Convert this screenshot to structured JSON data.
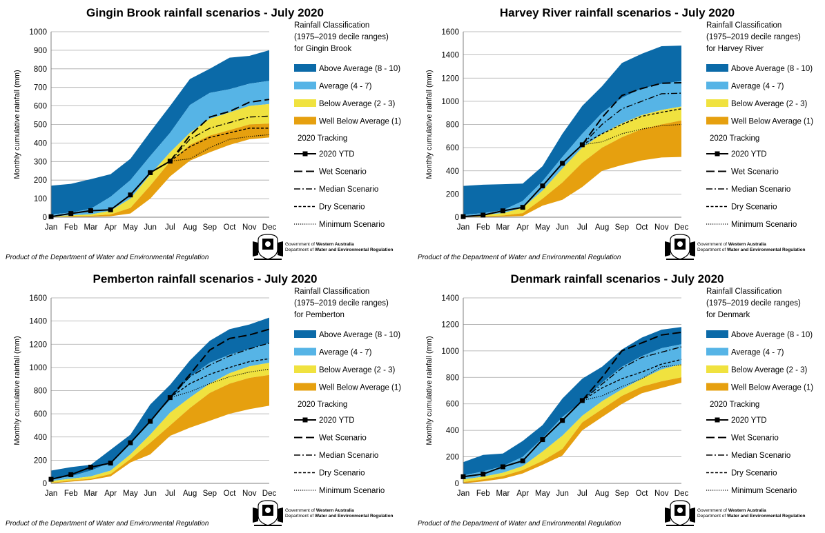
{
  "footer_text": "Product of the Department of Water and Environmental Regulation",
  "gov_line1_prefix": "Government of ",
  "gov_line1_bold": "Western Australia",
  "gov_line2_prefix": "Department of ",
  "gov_line2_bold": "Water and Environmental Regulation",
  "legend": {
    "heading_line1": "Rainfall Classification",
    "heading_line2": "(1975–2019 decile ranges)",
    "bands": [
      "Above Average (8 - 10)",
      "Average (4 - 7)",
      "Below Average (2 - 3)",
      "Well Below Average (1)"
    ],
    "tracking_heading": "2020 Tracking",
    "lines": [
      "2020 YTD",
      "Wet Scenario",
      "Median Scenario",
      "Dry Scenario",
      "Minimum Scenario"
    ]
  },
  "colors": {
    "above": "#0b6aa8",
    "average": "#56b4e6",
    "below": "#f0e23f",
    "well_below": "#e6a00f",
    "grid": "#a6a6a6"
  },
  "chart_data": [
    {
      "type": "area",
      "title": "Gingin Brook rainfall scenarios - July 2020",
      "ylabel": "Monthly cumulative rainfall (mm)",
      "legend_location": "for Gingin Brook",
      "categories": [
        "Jan",
        "Feb",
        "Mar",
        "Apr",
        "May",
        "Jun",
        "Jul",
        "Aug",
        "Sep",
        "Oct",
        "Nov",
        "Dec"
      ],
      "ylim": [
        0,
        1000
      ],
      "yticks": [
        0,
        100,
        200,
        300,
        400,
        500,
        600,
        700,
        800,
        900,
        1000
      ],
      "bands": {
        "max": [
          170,
          180,
          205,
          232,
          315,
          460,
          600,
          745,
          800,
          860,
          870,
          900
        ],
        "d7": [
          15,
          25,
          45,
          110,
          200,
          330,
          455,
          605,
          670,
          690,
          720,
          735
        ],
        "d3": [
          5,
          10,
          15,
          35,
          100,
          230,
          350,
          455,
          530,
          565,
          600,
          610
        ],
        "d1": [
          0,
          5,
          8,
          15,
          50,
          170,
          300,
          390,
          440,
          470,
          500,
          505
        ],
        "min": [
          0,
          2,
          3,
          5,
          20,
          100,
          220,
          305,
          350,
          390,
          420,
          430
        ]
      },
      "series": [
        {
          "name": "2020 YTD",
          "values": [
            3,
            20,
            35,
            40,
            120,
            240,
            302,
            null,
            null,
            null,
            null,
            null
          ]
        },
        {
          "name": "Wet Scenario",
          "values": [
            null,
            null,
            null,
            null,
            null,
            null,
            302,
            440,
            540,
            570,
            620,
            635
          ]
        },
        {
          "name": "Median Scenario",
          "values": [
            null,
            null,
            null,
            null,
            null,
            null,
            302,
            420,
            480,
            510,
            540,
            545
          ]
        },
        {
          "name": "Dry Scenario",
          "values": [
            null,
            null,
            null,
            null,
            null,
            null,
            302,
            380,
            430,
            455,
            480,
            480
          ]
        },
        {
          "name": "Minimum Scenario",
          "values": [
            null,
            null,
            null,
            null,
            null,
            null,
            302,
            315,
            375,
            420,
            435,
            445
          ]
        }
      ]
    },
    {
      "type": "area",
      "title": "Harvey River rainfall scenarios - July 2020",
      "ylabel": "Monthly cumulative rainfall (mm)",
      "legend_location": "for Harvey River",
      "categories": [
        "Jan",
        "Feb",
        "Mar",
        "Apr",
        "May",
        "Jun",
        "Jul",
        "Aug",
        "Sep",
        "Oct",
        "Nov",
        "Dec"
      ],
      "ylim": [
        0,
        1600
      ],
      "yticks": [
        0,
        200,
        400,
        600,
        800,
        1000,
        1200,
        1400,
        1600
      ],
      "bands": {
        "max": [
          270,
          280,
          285,
          290,
          440,
          720,
          960,
          1130,
          1330,
          1410,
          1475,
          1480
        ],
        "d7": [
          20,
          35,
          60,
          140,
          310,
          520,
          720,
          900,
          1030,
          1110,
          1150,
          1175
        ],
        "d3": [
          10,
          20,
          35,
          80,
          230,
          420,
          600,
          720,
          810,
          880,
          925,
          955
        ],
        "d1": [
          0,
          8,
          15,
          35,
          160,
          300,
          470,
          600,
          690,
          760,
          800,
          835
        ],
        "min": [
          0,
          2,
          5,
          10,
          100,
          150,
          260,
          400,
          450,
          490,
          515,
          520
        ]
      },
      "series": [
        {
          "name": "2020 YTD",
          "values": [
            5,
            18,
            55,
            85,
            270,
            465,
            625,
            null,
            null,
            null,
            null,
            null
          ]
        },
        {
          "name": "Wet Scenario",
          "values": [
            null,
            null,
            null,
            null,
            null,
            null,
            625,
            860,
            1050,
            1110,
            1155,
            1160
          ]
        },
        {
          "name": "Median Scenario",
          "values": [
            null,
            null,
            null,
            null,
            null,
            null,
            625,
            800,
            935,
            1000,
            1065,
            1070
          ]
        },
        {
          "name": "Dry Scenario",
          "values": [
            null,
            null,
            null,
            null,
            null,
            null,
            625,
            720,
            800,
            870,
            905,
            935
          ]
        },
        {
          "name": "Minimum Scenario",
          "values": [
            null,
            null,
            null,
            null,
            null,
            null,
            625,
            650,
            720,
            760,
            790,
            800
          ]
        }
      ]
    },
    {
      "type": "area",
      "title": "Pemberton rainfall scenarios - July 2020",
      "ylabel": "Monthly cumulative rainfall (mm)",
      "legend_location": " for Pemberton",
      "categories": [
        "Jan",
        "Feb",
        "Mar",
        "Apr",
        "May",
        "Jun",
        "Jul",
        "Aug",
        "Sep",
        "Oct",
        "Nov",
        "Dec"
      ],
      "ylim": [
        0,
        1600
      ],
      "yticks": [
        0,
        200,
        400,
        600,
        800,
        1000,
        1200,
        1400,
        1600
      ],
      "bands": {
        "max": [
          110,
          140,
          160,
          290,
          420,
          680,
          850,
          1060,
          1230,
          1330,
          1370,
          1430
        ],
        "d7": [
          35,
          60,
          110,
          180,
          340,
          540,
          720,
          920,
          1040,
          1110,
          1160,
          1210
        ],
        "d3": [
          20,
          40,
          60,
          110,
          250,
          420,
          610,
          740,
          860,
          950,
          1010,
          1040
        ],
        "d1": [
          5,
          25,
          40,
          80,
          210,
          350,
          500,
          650,
          780,
          860,
          910,
          935
        ],
        "min": [
          0,
          15,
          30,
          60,
          180,
          250,
          410,
          480,
          540,
          600,
          640,
          670
        ]
      },
      "series": [
        {
          "name": "2020 YTD",
          "values": [
            35,
            75,
            140,
            175,
            350,
            535,
            740,
            null,
            null,
            null,
            null,
            null
          ]
        },
        {
          "name": "Wet Scenario",
          "values": [
            null,
            null,
            null,
            null,
            null,
            null,
            740,
            940,
            1150,
            1250,
            1280,
            1330
          ]
        },
        {
          "name": "Median Scenario",
          "values": [
            null,
            null,
            null,
            null,
            null,
            null,
            740,
            920,
            1020,
            1100,
            1160,
            1210
          ]
        },
        {
          "name": "Dry Scenario",
          "values": [
            null,
            null,
            null,
            null,
            null,
            null,
            740,
            860,
            940,
            1000,
            1050,
            1075
          ]
        },
        {
          "name": "Minimum Scenario",
          "values": [
            null,
            null,
            null,
            null,
            null,
            null,
            740,
            790,
            860,
            920,
            960,
            985
          ]
        }
      ]
    },
    {
      "type": "area",
      "title": "Denmark rainfall scenarios - July 2020",
      "ylabel": "Monthly cumulative rainfall (mm)",
      "legend_location": "for Denmark",
      "categories": [
        "Jan",
        "Feb",
        "Mar",
        "Apr",
        "May",
        "Jun",
        "Jul",
        "Aug",
        "Sep",
        "Oct",
        "Nov",
        "Dec"
      ],
      "ylim": [
        0,
        1400
      ],
      "yticks": [
        0,
        200,
        400,
        600,
        800,
        1000,
        1200,
        1400
      ],
      "bands": {
        "max": [
          160,
          215,
          225,
          320,
          440,
          640,
          790,
          880,
          1010,
          1100,
          1160,
          1180
        ],
        "d7": [
          60,
          90,
          130,
          200,
          340,
          500,
          620,
          760,
          880,
          960,
          1020,
          1050
        ],
        "d3": [
          30,
          50,
          80,
          130,
          240,
          360,
          510,
          620,
          710,
          790,
          860,
          900
        ],
        "d1": [
          10,
          30,
          55,
          100,
          170,
          260,
          460,
          560,
          660,
          730,
          770,
          800
        ],
        "min": [
          0,
          15,
          35,
          75,
          140,
          210,
          400,
          500,
          600,
          680,
          720,
          760
        ]
      },
      "series": [
        {
          "name": "2020 YTD",
          "values": [
            50,
            70,
            125,
            170,
            330,
            475,
            625,
            null,
            null,
            null,
            null,
            null
          ]
        },
        {
          "name": "Wet Scenario",
          "values": [
            null,
            null,
            null,
            null,
            null,
            null,
            625,
            800,
            1000,
            1060,
            1120,
            1140
          ]
        },
        {
          "name": "Median Scenario",
          "values": [
            null,
            null,
            null,
            null,
            null,
            null,
            625,
            750,
            870,
            950,
            990,
            1030
          ]
        },
        {
          "name": "Dry Scenario",
          "values": [
            null,
            null,
            null,
            null,
            null,
            null,
            625,
            720,
            790,
            840,
            900,
            935
          ]
        },
        {
          "name": "Minimum Scenario",
          "values": [
            null,
            null,
            null,
            null,
            null,
            null,
            625,
            660,
            730,
            790,
            880,
            895
          ]
        }
      ]
    }
  ]
}
